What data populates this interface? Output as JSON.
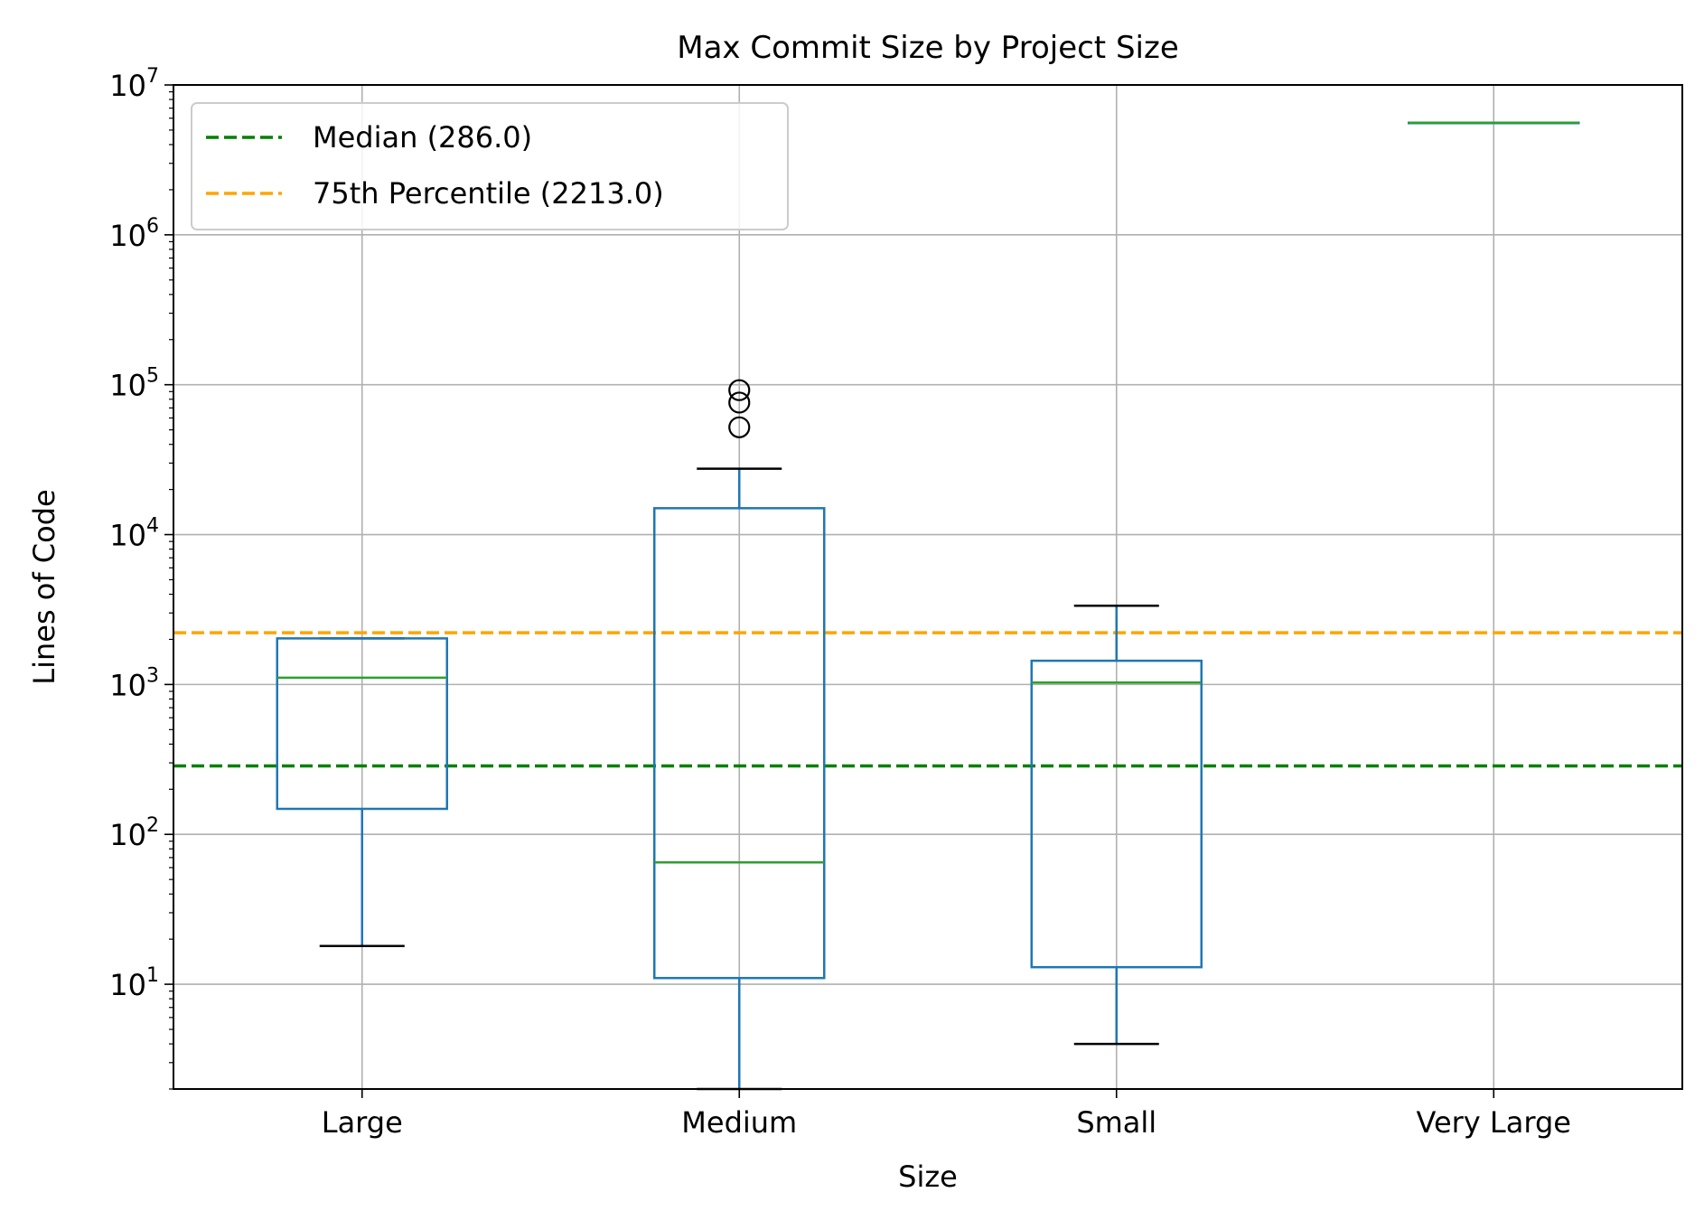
{
  "chart_data": {
    "type": "box",
    "title": "Max Commit Size by Project Size",
    "xlabel": "Size",
    "ylabel": "Lines of Code",
    "yscale": "log",
    "ylim": [
      2,
      10000000
    ],
    "grid": true,
    "legend_position": "top-left",
    "y_ticks": [
      {
        "value": 10,
        "base": "10",
        "exp": "1"
      },
      {
        "value": 100,
        "base": "10",
        "exp": "2"
      },
      {
        "value": 1000,
        "base": "10",
        "exp": "3"
      },
      {
        "value": 10000,
        "base": "10",
        "exp": "4"
      },
      {
        "value": 100000,
        "base": "10",
        "exp": "5"
      },
      {
        "value": 1000000,
        "base": "10",
        "exp": "6"
      },
      {
        "value": 10000000,
        "base": "10",
        "exp": "7"
      }
    ],
    "categories": [
      "Large",
      "Medium",
      "Small",
      "Very Large"
    ],
    "boxes": [
      {
        "category": "Large",
        "whisker_low": 18,
        "q1": 148,
        "median": 1110,
        "q3": 2030,
        "whisker_high": 2030,
        "outliers": []
      },
      {
        "category": "Medium",
        "whisker_low": 2,
        "q1": 11,
        "median": 65,
        "q3": 15000,
        "whisker_high": 27500,
        "outliers": [
          52000,
          76000,
          92000
        ]
      },
      {
        "category": "Small",
        "whisker_low": 4,
        "q1": 13,
        "median": 1030,
        "q3": 1440,
        "whisker_high": 3350,
        "outliers": []
      },
      {
        "category": "Very Large",
        "whisker_low": 5600000,
        "q1": 5600000,
        "median": 5600000,
        "q3": 5600000,
        "whisker_high": 5600000,
        "outliers": []
      }
    ],
    "reference_lines": [
      {
        "name": "Median (286.0)",
        "value": 286.0,
        "color": "#008000"
      },
      {
        "name": "75th Percentile (2213.0)",
        "value": 2213.0,
        "color": "#ffa500"
      }
    ],
    "colors": {
      "box": "#1f77b4",
      "median": "#2ca02c",
      "cap": "#000000",
      "grid": "#b0b0b0"
    }
  }
}
